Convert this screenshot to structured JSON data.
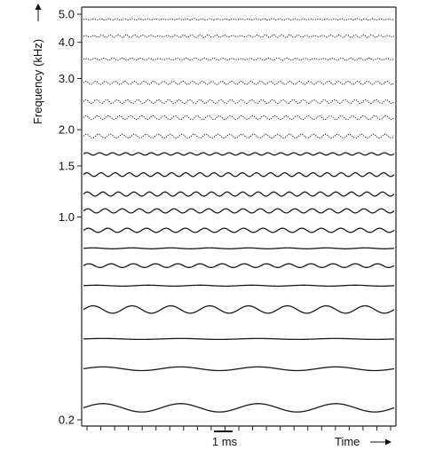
{
  "chart_data": {
    "type": "line",
    "ylabel": "Frequency (kHz)",
    "xlabel": "Time",
    "scale_bar_label": "1 ms",
    "ytick_labels": [
      {
        "label": "5.0",
        "value": 5.0
      },
      {
        "label": "4.0",
        "value": 4.0
      },
      {
        "label": "3.0",
        "value": 3.0
      },
      {
        "label": "2.0",
        "value": 2.0
      },
      {
        "label": "1.5",
        "value": 1.5
      },
      {
        "label": "1.0",
        "value": 1.0
      },
      {
        "label": "0.2",
        "value": 0.2
      }
    ],
    "y_scale": "log",
    "ylim_khz": [
      0.2,
      5.0
    ],
    "channels": [
      {
        "cf_khz": 4.8,
        "amplitude": 0.3,
        "cycles": 40,
        "dotted": true,
        "envelope_period": 8
      },
      {
        "cf_khz": 4.2,
        "amplitude": 0.6,
        "cycles": 38,
        "dotted": true,
        "envelope_period": 8
      },
      {
        "cf_khz": 3.5,
        "amplitude": 0.5,
        "cycles": 34,
        "dotted": true,
        "envelope_period": 8
      },
      {
        "cf_khz": 2.9,
        "amplitude": 0.7,
        "cycles": 32,
        "dotted": true,
        "envelope_period": 0
      },
      {
        "cf_khz": 2.5,
        "amplitude": 0.8,
        "cycles": 30,
        "dotted": true,
        "envelope_period": 0
      },
      {
        "cf_khz": 2.2,
        "amplitude": 0.8,
        "cycles": 28,
        "dotted": true,
        "envelope_period": 0
      },
      {
        "cf_khz": 1.9,
        "amplitude": 0.8,
        "cycles": 26,
        "dotted": true,
        "envelope_period": 0
      },
      {
        "cf_khz": 1.65,
        "amplitude": 0.5,
        "cycles": 24,
        "dotted": false,
        "envelope_period": 0
      },
      {
        "cf_khz": 1.4,
        "amplitude": 0.8,
        "cycles": 22,
        "dotted": false,
        "envelope_period": 0
      },
      {
        "cf_khz": 1.2,
        "amplitude": 0.9,
        "cycles": 20,
        "dotted": false,
        "envelope_period": 0
      },
      {
        "cf_khz": 1.05,
        "amplitude": 0.9,
        "cycles": 18,
        "dotted": false,
        "envelope_period": 0
      },
      {
        "cf_khz": 0.9,
        "amplitude": 0.9,
        "cycles": 16,
        "dotted": false,
        "envelope_period": 0
      },
      {
        "cf_khz": 0.78,
        "amplitude": 0.2,
        "cycles": 8,
        "dotted": false,
        "envelope_period": 0
      },
      {
        "cf_khz": 0.68,
        "amplitude": 0.8,
        "cycles": 14,
        "dotted": false,
        "envelope_period": 0
      },
      {
        "cf_khz": 0.58,
        "amplitude": 0.2,
        "cycles": 6,
        "dotted": false,
        "envelope_period": 0
      },
      {
        "cf_khz": 0.48,
        "amplitude": 1.6,
        "cycles": 8,
        "dotted": false,
        "envelope_period": 0
      },
      {
        "cf_khz": 0.38,
        "amplitude": 0.2,
        "cycles": 4,
        "dotted": false,
        "envelope_period": 0
      },
      {
        "cf_khz": 0.3,
        "amplitude": 0.8,
        "cycles": 4,
        "dotted": false,
        "envelope_period": 0
      },
      {
        "cf_khz": 0.22,
        "amplitude": 1.8,
        "cycles": 4,
        "dotted": false,
        "envelope_period": 0
      }
    ]
  }
}
